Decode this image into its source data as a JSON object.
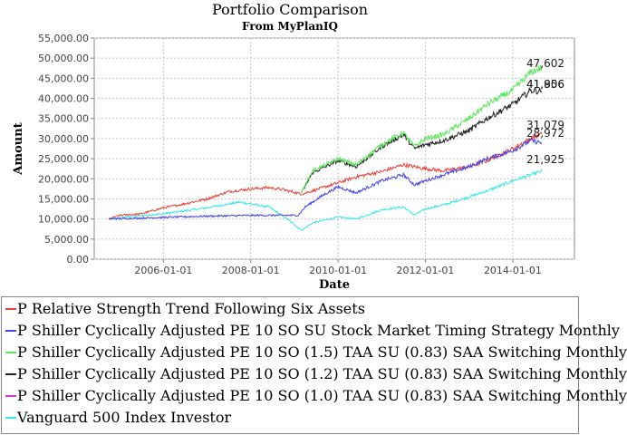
{
  "chart_data": {
    "type": "line",
    "title": "Portfolio Comparison",
    "subtitle": "From MyPlanIQ",
    "xlabel": "Date",
    "ylabel": "Amount",
    "ylim": [
      0,
      55000
    ],
    "xlim": [
      "2004-06-01",
      "2015-06-01"
    ],
    "y_ticks": [
      "0.00",
      "5,000.00",
      "10,000.00",
      "15,000.00",
      "20,000.00",
      "25,000.00",
      "30,000.00",
      "35,000.00",
      "40,000.00",
      "45,000.00",
      "50,000.00",
      "55,000.00"
    ],
    "x_ticks": [
      "2006-01-01",
      "2008-01-01",
      "2010-01-01",
      "2012-01-01",
      "2014-01-01"
    ],
    "grid": true,
    "legend_position": "bottom",
    "end_labels": [
      "47,602",
      "41,806",
      "41,956",
      "31,079",
      "28,972",
      "21,925"
    ],
    "series": [
      {
        "name": "P Relative Strength Trend Following Six Assets",
        "color": "#e8423a",
        "points": [
          [
            "2004-10-01",
            10000
          ],
          [
            "2005-01-01",
            10900
          ],
          [
            "2005-07-01",
            11300
          ],
          [
            "2006-01-01",
            12800
          ],
          [
            "2006-06-01",
            13600
          ],
          [
            "2007-01-01",
            15000
          ],
          [
            "2007-07-01",
            16800
          ],
          [
            "2008-01-01",
            17500
          ],
          [
            "2008-06-01",
            17800
          ],
          [
            "2008-10-01",
            17300
          ],
          [
            "2009-03-01",
            16200
          ],
          [
            "2009-06-01",
            17000
          ],
          [
            "2010-01-01",
            19000
          ],
          [
            "2010-06-01",
            20500
          ],
          [
            "2011-01-01",
            21800
          ],
          [
            "2011-07-01",
            23500
          ],
          [
            "2012-01-01",
            22500
          ],
          [
            "2012-06-01",
            22000
          ],
          [
            "2013-01-01",
            23000
          ],
          [
            "2013-06-01",
            24500
          ],
          [
            "2014-01-01",
            27500
          ],
          [
            "2014-06-01",
            30000
          ],
          [
            "2014-09-01",
            31079
          ]
        ]
      },
      {
        "name": "P Shiller Cyclically Adjusted PE 10 SO SU Stock Market Timing Strategy Monthly",
        "color": "#4545e0",
        "points": [
          [
            "2004-10-01",
            10000
          ],
          [
            "2005-06-01",
            10200
          ],
          [
            "2006-01-01",
            10400
          ],
          [
            "2007-01-01",
            10700
          ],
          [
            "2008-01-01",
            10900
          ],
          [
            "2009-02-01",
            10900
          ],
          [
            "2009-04-01",
            13000
          ],
          [
            "2009-09-01",
            16000
          ],
          [
            "2010-01-01",
            18000
          ],
          [
            "2010-06-01",
            16500
          ],
          [
            "2011-01-01",
            19500
          ],
          [
            "2011-07-01",
            21000
          ],
          [
            "2011-10-01",
            18500
          ],
          [
            "2012-01-01",
            19500
          ],
          [
            "2012-06-01",
            21000
          ],
          [
            "2013-01-01",
            23000
          ],
          [
            "2013-06-01",
            25000
          ],
          [
            "2014-01-01",
            27000
          ],
          [
            "2014-06-01",
            29500
          ],
          [
            "2014-09-01",
            28972
          ]
        ]
      },
      {
        "name": "P Shiller Cyclically Adjusted PE 10 SO (1.5) TAA SU (0.83) SAA Switching Monthly",
        "color": "#5ee85e",
        "points": [
          [
            "2009-03-01",
            16500
          ],
          [
            "2009-06-01",
            22000
          ],
          [
            "2010-01-01",
            25000
          ],
          [
            "2010-06-01",
            23500
          ],
          [
            "2011-01-01",
            28500
          ],
          [
            "2011-07-01",
            31500
          ],
          [
            "2011-10-01",
            28000
          ],
          [
            "2012-01-01",
            30000
          ],
          [
            "2012-06-01",
            31000
          ],
          [
            "2013-01-01",
            35000
          ],
          [
            "2013-06-01",
            38500
          ],
          [
            "2014-01-01",
            42000
          ],
          [
            "2014-06-01",
            46500
          ],
          [
            "2014-09-01",
            47602
          ]
        ]
      },
      {
        "name": "P Shiller Cyclically Adjusted PE 10 SO (1.2) TAA SU (0.83) SAA Switching Monthly",
        "color": "#222222",
        "points": [
          [
            "2009-03-01",
            16500
          ],
          [
            "2009-06-01",
            21500
          ],
          [
            "2010-01-01",
            24500
          ],
          [
            "2010-06-01",
            23000
          ],
          [
            "2011-01-01",
            28000
          ],
          [
            "2011-07-01",
            31000
          ],
          [
            "2011-10-01",
            27500
          ],
          [
            "2012-01-01",
            28500
          ],
          [
            "2012-06-01",
            29500
          ],
          [
            "2013-01-01",
            32000
          ],
          [
            "2013-06-01",
            35000
          ],
          [
            "2014-01-01",
            38500
          ],
          [
            "2014-06-01",
            42000
          ],
          [
            "2014-09-01",
            41806
          ]
        ]
      },
      {
        "name": "P Shiller Cyclically Adjusted PE 10 SO (1.0) TAA SU (0.83) SAA Switching Monthly",
        "color": "#d23ad2",
        "points": [
          [
            "2014-09-01",
            41956
          ]
        ]
      },
      {
        "name": "Vanguard 500 Index Investor",
        "color": "#38e8e8",
        "points": [
          [
            "2004-10-01",
            10000
          ],
          [
            "2005-06-01",
            10800
          ],
          [
            "2006-01-01",
            11300
          ],
          [
            "2007-01-01",
            12800
          ],
          [
            "2007-10-01",
            14200
          ],
          [
            "2008-06-01",
            13000
          ],
          [
            "2008-11-01",
            10000
          ],
          [
            "2009-03-01",
            7200
          ],
          [
            "2009-06-01",
            9000
          ],
          [
            "2010-01-01",
            10500
          ],
          [
            "2010-06-01",
            10000
          ],
          [
            "2011-01-01",
            12300
          ],
          [
            "2011-07-01",
            13000
          ],
          [
            "2011-10-01",
            11000
          ],
          [
            "2012-01-01",
            12500
          ],
          [
            "2012-06-01",
            13500
          ],
          [
            "2013-01-01",
            15500
          ],
          [
            "2013-06-01",
            17000
          ],
          [
            "2014-01-01",
            19500
          ],
          [
            "2014-06-01",
            21000
          ],
          [
            "2014-09-01",
            21925
          ]
        ]
      }
    ]
  }
}
